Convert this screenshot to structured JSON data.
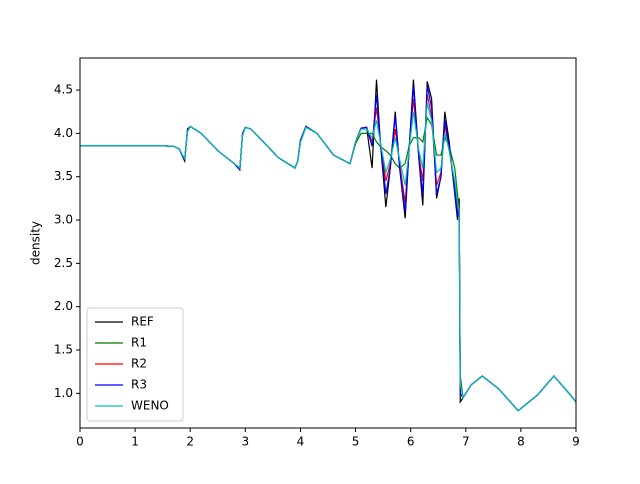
{
  "chart_data": {
    "type": "line",
    "y_label": "density",
    "x": [
      0,
      1,
      1.5,
      1.7,
      1.8,
      1.85,
      1.9,
      1.95,
      2.0,
      2.2,
      2.5,
      2.8,
      2.9,
      2.95,
      3.0,
      3.1,
      3.3,
      3.6,
      3.9,
      3.95,
      4.0,
      4.1,
      4.3,
      4.6,
      4.9,
      5.0,
      5.1,
      5.2,
      5.3,
      5.38,
      5.45,
      5.55,
      5.63,
      5.72,
      5.8,
      5.9,
      5.97,
      6.05,
      6.15,
      6.22,
      6.3,
      6.38,
      6.47,
      6.55,
      6.62,
      6.7,
      6.8,
      6.85,
      6.88,
      6.9,
      6.95,
      7.1,
      7.3,
      7.6,
      7.95,
      8.3,
      8.6,
      8.9,
      9.0
    ],
    "series": [
      {
        "name": "REF",
        "color": "#000000",
        "values": [
          3.857,
          3.857,
          3.857,
          3.85,
          3.82,
          3.75,
          3.68,
          4.05,
          4.08,
          4.0,
          3.8,
          3.65,
          3.58,
          4.0,
          4.07,
          4.05,
          3.92,
          3.72,
          3.6,
          3.68,
          3.92,
          4.08,
          4.0,
          3.75,
          3.65,
          3.9,
          4.06,
          4.07,
          3.6,
          4.62,
          3.9,
          3.15,
          3.6,
          4.25,
          3.6,
          3.02,
          3.8,
          4.62,
          3.7,
          3.17,
          4.6,
          4.4,
          3.25,
          3.5,
          4.25,
          3.9,
          3.3,
          3.0,
          3.25,
          0.9,
          0.95,
          1.1,
          1.2,
          1.05,
          0.8,
          0.98,
          1.2,
          0.98,
          0.9
        ]
      },
      {
        "name": "R1",
        "color": "#008000",
        "values": [
          3.857,
          3.857,
          3.857,
          3.85,
          3.82,
          3.76,
          3.71,
          4.02,
          4.08,
          4.0,
          3.8,
          3.65,
          3.6,
          3.98,
          4.07,
          4.05,
          3.92,
          3.72,
          3.6,
          3.68,
          3.9,
          4.07,
          4.0,
          3.75,
          3.65,
          3.88,
          4.0,
          4.0,
          4.0,
          3.9,
          3.85,
          3.8,
          3.75,
          3.65,
          3.6,
          3.65,
          3.85,
          3.95,
          3.95,
          3.9,
          4.18,
          4.1,
          3.75,
          3.75,
          3.95,
          3.85,
          3.6,
          3.3,
          3.1,
          1.2,
          0.95,
          1.1,
          1.2,
          1.05,
          0.8,
          0.98,
          1.2,
          0.98,
          0.9
        ]
      },
      {
        "name": "R2",
        "color": "#ff0000",
        "values": [
          3.857,
          3.857,
          3.857,
          3.85,
          3.82,
          3.75,
          3.7,
          4.03,
          4.08,
          4.0,
          3.8,
          3.65,
          3.58,
          4.0,
          4.07,
          4.05,
          3.92,
          3.72,
          3.6,
          3.68,
          3.92,
          4.08,
          4.0,
          3.75,
          3.65,
          3.9,
          4.06,
          4.07,
          3.9,
          4.3,
          3.9,
          3.45,
          3.65,
          4.05,
          3.65,
          3.2,
          3.8,
          4.4,
          3.75,
          3.45,
          4.45,
          4.2,
          3.4,
          3.55,
          4.1,
          3.8,
          3.4,
          3.1,
          3.1,
          1.0,
          0.95,
          1.1,
          1.2,
          1.05,
          0.8,
          0.98,
          1.2,
          0.98,
          0.9
        ]
      },
      {
        "name": "R3",
        "color": "#0000ff",
        "values": [
          3.857,
          3.857,
          3.857,
          3.85,
          3.82,
          3.75,
          3.7,
          4.03,
          4.08,
          4.0,
          3.8,
          3.65,
          3.58,
          4.0,
          4.07,
          4.05,
          3.92,
          3.72,
          3.6,
          3.68,
          3.92,
          4.08,
          4.0,
          3.75,
          3.65,
          3.9,
          4.06,
          4.07,
          3.85,
          4.45,
          3.9,
          3.3,
          3.6,
          4.2,
          3.6,
          3.1,
          3.8,
          4.55,
          3.7,
          3.3,
          4.55,
          4.3,
          3.3,
          3.5,
          4.15,
          3.85,
          3.35,
          3.05,
          3.1,
          1.0,
          0.95,
          1.1,
          1.2,
          1.05,
          0.8,
          0.98,
          1.2,
          0.98,
          0.9
        ]
      },
      {
        "name": "WENO",
        "color": "#00bfbf",
        "values": [
          3.857,
          3.857,
          3.857,
          3.85,
          3.82,
          3.76,
          3.71,
          4.02,
          4.08,
          4.0,
          3.8,
          3.65,
          3.6,
          3.98,
          4.07,
          4.05,
          3.92,
          3.72,
          3.6,
          3.68,
          3.9,
          4.07,
          4.0,
          3.75,
          3.65,
          3.9,
          4.05,
          4.05,
          3.95,
          4.15,
          3.9,
          3.55,
          3.7,
          3.95,
          3.7,
          3.4,
          3.8,
          4.25,
          3.8,
          3.6,
          4.35,
          4.15,
          3.55,
          3.6,
          4.0,
          3.8,
          3.45,
          3.2,
          3.1,
          1.1,
          0.95,
          1.1,
          1.2,
          1.05,
          0.8,
          0.98,
          1.2,
          0.98,
          0.9
        ]
      }
    ],
    "xlim": [
      0,
      9
    ],
    "ylim": [
      0.6,
      4.87
    ],
    "xticks": [
      0,
      1,
      2,
      3,
      4,
      5,
      6,
      7,
      8,
      9
    ],
    "yticks": [
      {
        "value": 1.0,
        "label": "1.0"
      },
      {
        "value": 1.5,
        "label": "1.5"
      },
      {
        "value": 2.0,
        "label": "2.0"
      },
      {
        "value": 2.5,
        "label": "2.5"
      },
      {
        "value": 3.0,
        "label": "3.0"
      },
      {
        "value": 3.5,
        "label": "3.5"
      },
      {
        "value": 4.0,
        "label": "4.0"
      },
      {
        "value": 4.5,
        "label": "4.5"
      }
    ],
    "legend": "lower left"
  }
}
